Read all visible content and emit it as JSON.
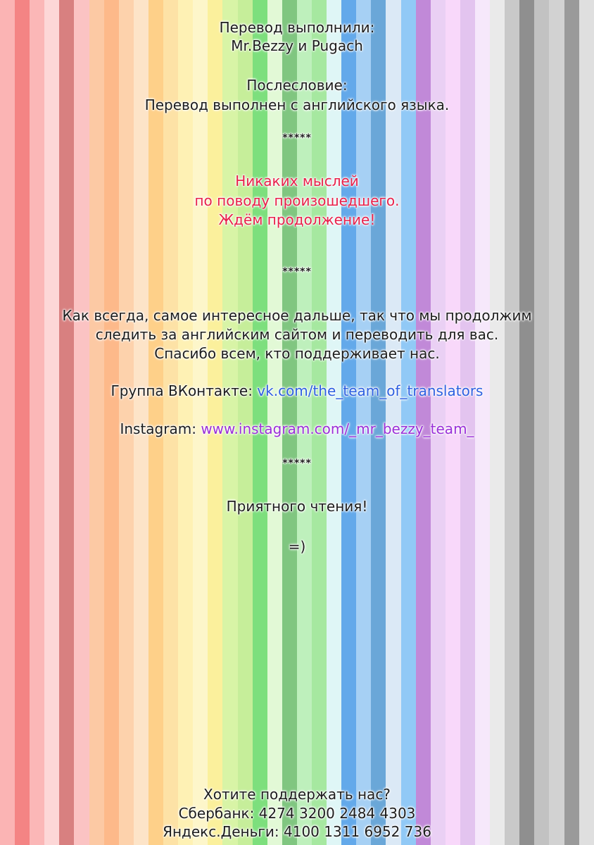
{
  "credits": {
    "title": "Перевод выполнили:",
    "names": "Mr.Bezzy и Pugach"
  },
  "afterword": {
    "title": "Послесловие:",
    "text": "Перевод выполнен с английского языка."
  },
  "separator": "*****",
  "comment": {
    "line1": "Никаких мыслей",
    "line2": "по поводу произошедшего.",
    "line3": "Ждём продолжение!"
  },
  "message": {
    "line1": "Как всегда, самое интересное дальше, так что мы продолжим",
    "line2": "следить за английским сайтом и переводить для вас.",
    "line3": "Спасибо всем, кто поддерживает нас."
  },
  "vk": {
    "label": "Группа ВКонтакте:",
    "link": "vk.com/the_team_of_translators"
  },
  "instagram": {
    "label": "Instagram:",
    "link": "www.instagram.com/_mr_bezzy_team_"
  },
  "closing": {
    "wish": "Приятного чтения!",
    "smiley": "=)"
  },
  "support": {
    "question": "Хотите поддержать нас?",
    "sberbank": "Сбербанк: 4274 3200 2484 4303",
    "yandex": "Яндекс.Деньги: 4100 1311 6952 736"
  },
  "colors": {
    "stripes": [
      "#fbb4b4",
      "#f48484",
      "#fbb7b7",
      "#fdd7d7",
      "#d88080",
      "#fbc3c3",
      "#fcc9a4",
      "#fdb98a",
      "#fdd2ac",
      "#fde4c8",
      "#fed089",
      "#fde2a6",
      "#fef1b4",
      "#fdf6ca",
      "#fbf09c",
      "#d8f4a6",
      "#c6ee9a",
      "#7ddf7d",
      "#e2f9d6",
      "#80c680",
      "#bef0bc",
      "#a6e8a0",
      "#dff6f6",
      "#63a9ea",
      "#a6d0f4",
      "#6aa7d8",
      "#dbe9f6",
      "#91c9f6",
      "#c189d8",
      "#ead0f4",
      "#f8d8fa",
      "#e3c4ef",
      "#f6e8fb",
      "#eaeaea",
      "#c9c9c9",
      "#8f8f8f",
      "#c2c2c2",
      "#d2d2d2",
      "#9a9a9a",
      "#dfdfdf"
    ],
    "comment": "#e8204a",
    "vk_link": "#2d5fe0",
    "instagram_link": "#9a2fd8"
  }
}
